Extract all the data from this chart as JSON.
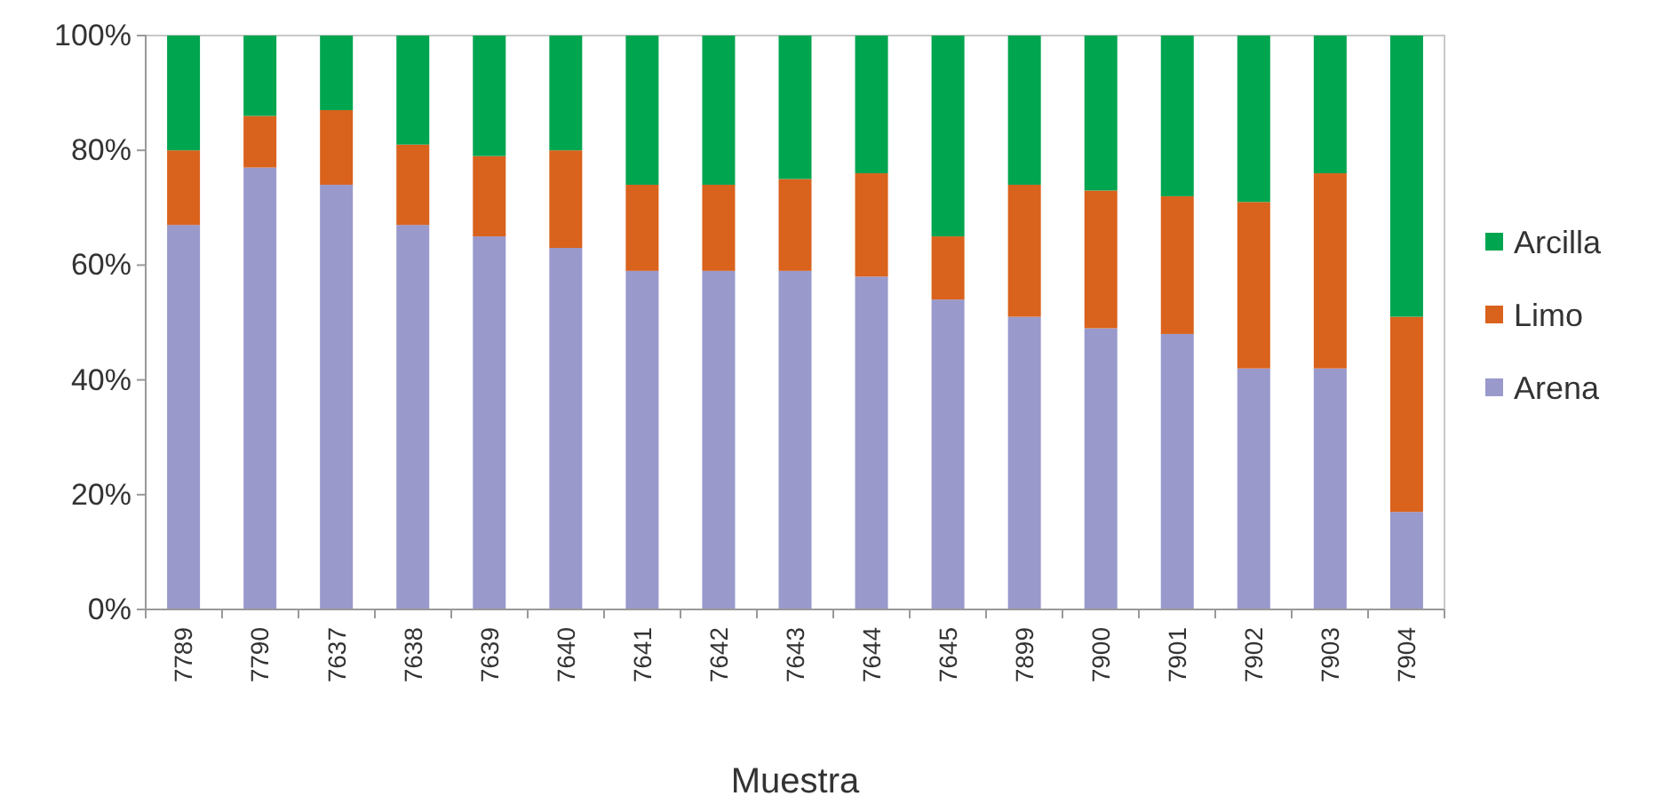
{
  "chart_data": {
    "type": "bar",
    "stacked": true,
    "xlabel": "Muestra",
    "categories": [
      "7789",
      "7790",
      "7637",
      "7638",
      "7639",
      "7640",
      "7641",
      "7642",
      "7643",
      "7644",
      "7645",
      "7899",
      "7900",
      "7901",
      "7902",
      "7903",
      "7904"
    ],
    "series": [
      {
        "name": "Arena",
        "color": "#9999cc",
        "values": [
          67,
          77,
          74,
          67,
          65,
          63,
          59,
          59,
          59,
          58,
          54,
          51,
          49,
          48,
          42,
          42,
          17
        ]
      },
      {
        "name": "Limo",
        "color": "#d9621c",
        "values": [
          13,
          9,
          13,
          14,
          14,
          17,
          15,
          15,
          16,
          18,
          11,
          23,
          24,
          24,
          29,
          34,
          34
        ]
      },
      {
        "name": "Arcilla",
        "color": "#00a550",
        "values": [
          20,
          14,
          13,
          19,
          21,
          20,
          26,
          26,
          25,
          24,
          35,
          26,
          27,
          28,
          29,
          24,
          49
        ]
      }
    ],
    "ylim": [
      0,
      100
    ],
    "yticks": [
      {
        "value": 0,
        "label": "0%"
      },
      {
        "value": 20,
        "label": "20%"
      },
      {
        "value": 40,
        "label": "40%"
      },
      {
        "value": 60,
        "label": "60%"
      },
      {
        "value": 80,
        "label": "80%"
      },
      {
        "value": 100,
        "label": "100%"
      }
    ],
    "grid": false,
    "legend": "right"
  }
}
